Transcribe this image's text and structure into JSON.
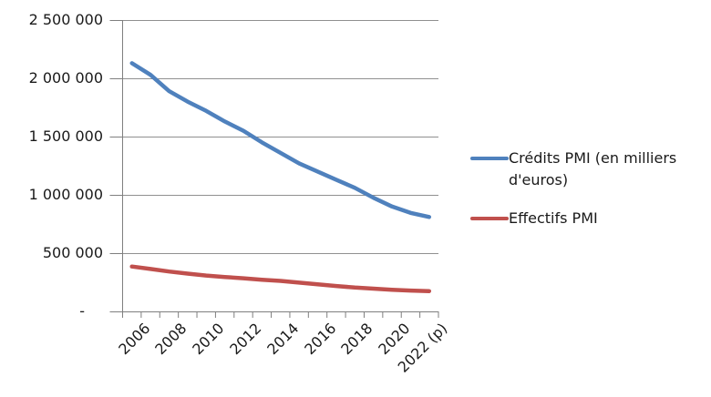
{
  "chart_data": {
    "type": "line",
    "title": "",
    "categories": [
      "2006",
      "2007",
      "2008",
      "2009",
      "2010",
      "2011",
      "2012",
      "2013",
      "2014",
      "2015",
      "2016",
      "2017",
      "2018",
      "2019",
      "2020",
      "2021",
      "2022 (p)"
    ],
    "x_tick_labels": [
      "2006",
      "2008",
      "2010",
      "2012",
      "2014",
      "2016",
      "2018",
      "2020",
      "2022 (p)"
    ],
    "series": [
      {
        "name": "Crédits PMI (en milliers d'euros)",
        "color": "#4F81BD",
        "values": [
          2130000,
          2030000,
          1890000,
          1800000,
          1720000,
          1630000,
          1550000,
          1450000,
          1360000,
          1270000,
          1200000,
          1130000,
          1060000,
          975000,
          900000,
          845000,
          810000
        ]
      },
      {
        "name": "Effectifs PMI",
        "color": "#C0504D",
        "values": [
          385000,
          364000,
          342000,
          324000,
          308000,
          295000,
          284000,
          272000,
          262000,
          247000,
          232000,
          218000,
          205000,
          195000,
          186000,
          179000,
          174000
        ]
      }
    ],
    "y_axis": {
      "min": 0,
      "max": 2500000,
      "step": 500000,
      "tick_labels": [
        "2 500 000",
        "2 000 000",
        "1 500 000",
        "1 000 000",
        "500 000",
        "-"
      ],
      "tick_values": [
        2500000,
        2000000,
        1500000,
        1000000,
        500000,
        0
      ]
    },
    "ylim": [
      0,
      2500000
    ],
    "grid": true,
    "legend_position": "right",
    "colors": {
      "grid": "#909090",
      "axis": "#7F7F7F",
      "text": "#1A1A1A",
      "background": "#FFFFFF"
    }
  }
}
